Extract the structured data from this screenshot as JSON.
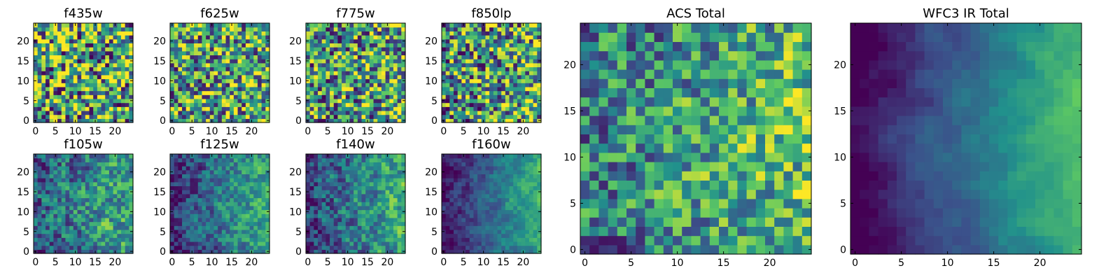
{
  "colormap": [
    "#440154",
    "#3b528b",
    "#21918c",
    "#5ec962",
    "#fde725"
  ],
  "chart_data": [
    {
      "type": "heatmap",
      "title": "f435w",
      "grid": [
        25,
        25
      ],
      "xlim": [
        0,
        24
      ],
      "ylim": [
        0,
        24
      ],
      "xticks": [
        0,
        5,
        10,
        15,
        20
      ],
      "yticks": [
        0,
        5,
        10,
        15,
        20
      ],
      "seed": 11,
      "trend": 0.0,
      "smooth": 0.0,
      "noise": 0.75,
      "base": 0.6
    },
    {
      "type": "heatmap",
      "title": "f625w",
      "grid": [
        25,
        25
      ],
      "xlim": [
        0,
        24
      ],
      "ylim": [
        0,
        24
      ],
      "xticks": [
        0,
        5,
        10,
        15,
        20
      ],
      "yticks": [
        0,
        5,
        10,
        15,
        20
      ],
      "seed": 23,
      "trend": 0.05,
      "smooth": 0.1,
      "noise": 0.7,
      "base": 0.58
    },
    {
      "type": "heatmap",
      "title": "f775w",
      "grid": [
        25,
        25
      ],
      "xlim": [
        0,
        24
      ],
      "ylim": [
        0,
        24
      ],
      "xticks": [
        0,
        5,
        10,
        15,
        20
      ],
      "yticks": [
        0,
        5,
        10,
        15,
        20
      ],
      "seed": 37,
      "trend": 0.1,
      "smooth": 0.1,
      "noise": 0.7,
      "base": 0.55
    },
    {
      "type": "heatmap",
      "title": "f850lp",
      "grid": [
        25,
        25
      ],
      "xlim": [
        0,
        24
      ],
      "ylim": [
        0,
        24
      ],
      "xticks": [
        0,
        5,
        10,
        15,
        20
      ],
      "yticks": [
        0,
        5,
        10,
        15,
        20
      ],
      "seed": 41,
      "trend": 0.12,
      "smooth": 0.1,
      "noise": 0.72,
      "base": 0.55
    },
    {
      "type": "heatmap",
      "title": "f105w",
      "grid": [
        25,
        25
      ],
      "xlim": [
        0,
        24
      ],
      "ylim": [
        0,
        24
      ],
      "xticks": [
        0,
        5,
        10,
        15,
        20
      ],
      "yticks": [
        0,
        5,
        10,
        15,
        20
      ],
      "seed": 53,
      "trend": 0.35,
      "smooth": 0.35,
      "noise": 0.5,
      "base": 0.45
    },
    {
      "type": "heatmap",
      "title": "f125w",
      "grid": [
        25,
        25
      ],
      "xlim": [
        0,
        24
      ],
      "ylim": [
        0,
        24
      ],
      "xticks": [
        0,
        5,
        10,
        15,
        20
      ],
      "yticks": [
        0,
        5,
        10,
        15,
        20
      ],
      "seed": 67,
      "trend": 0.45,
      "smooth": 0.45,
      "noise": 0.42,
      "base": 0.4
    },
    {
      "type": "heatmap",
      "title": "f140w",
      "grid": [
        25,
        25
      ],
      "xlim": [
        0,
        24
      ],
      "ylim": [
        0,
        24
      ],
      "xticks": [
        0,
        5,
        10,
        15,
        20
      ],
      "yticks": [
        0,
        5,
        10,
        15,
        20
      ],
      "seed": 79,
      "trend": 0.4,
      "smooth": 0.4,
      "noise": 0.46,
      "base": 0.42
    },
    {
      "type": "heatmap",
      "title": "f160w",
      "grid": [
        25,
        25
      ],
      "xlim": [
        0,
        24
      ],
      "ylim": [
        0,
        24
      ],
      "xticks": [
        0,
        5,
        10,
        15,
        20
      ],
      "yticks": [
        0,
        5,
        10,
        15,
        20
      ],
      "seed": 83,
      "trend": 0.6,
      "smooth": 0.6,
      "noise": 0.3,
      "base": 0.35
    },
    {
      "type": "heatmap",
      "title": "ACS Total",
      "grid": [
        25,
        25
      ],
      "xlim": [
        0,
        24
      ],
      "ylim": [
        0,
        24
      ],
      "xticks": [
        0,
        5,
        10,
        15,
        20
      ],
      "yticks": [
        0,
        5,
        10,
        15,
        20
      ],
      "seed": 97,
      "trend": 0.25,
      "smooth": 0.25,
      "noise": 0.55,
      "base": 0.55
    },
    {
      "type": "heatmap",
      "title": "WFC3 IR Total",
      "grid": [
        25,
        25
      ],
      "xlim": [
        0,
        24
      ],
      "ylim": [
        0,
        24
      ],
      "xticks": [
        0,
        5,
        10,
        15,
        20
      ],
      "yticks": [
        0,
        5,
        10,
        15,
        20
      ],
      "seed": 101,
      "trend": 0.7,
      "smooth": 0.75,
      "noise": 0.18,
      "base": 0.35
    }
  ]
}
